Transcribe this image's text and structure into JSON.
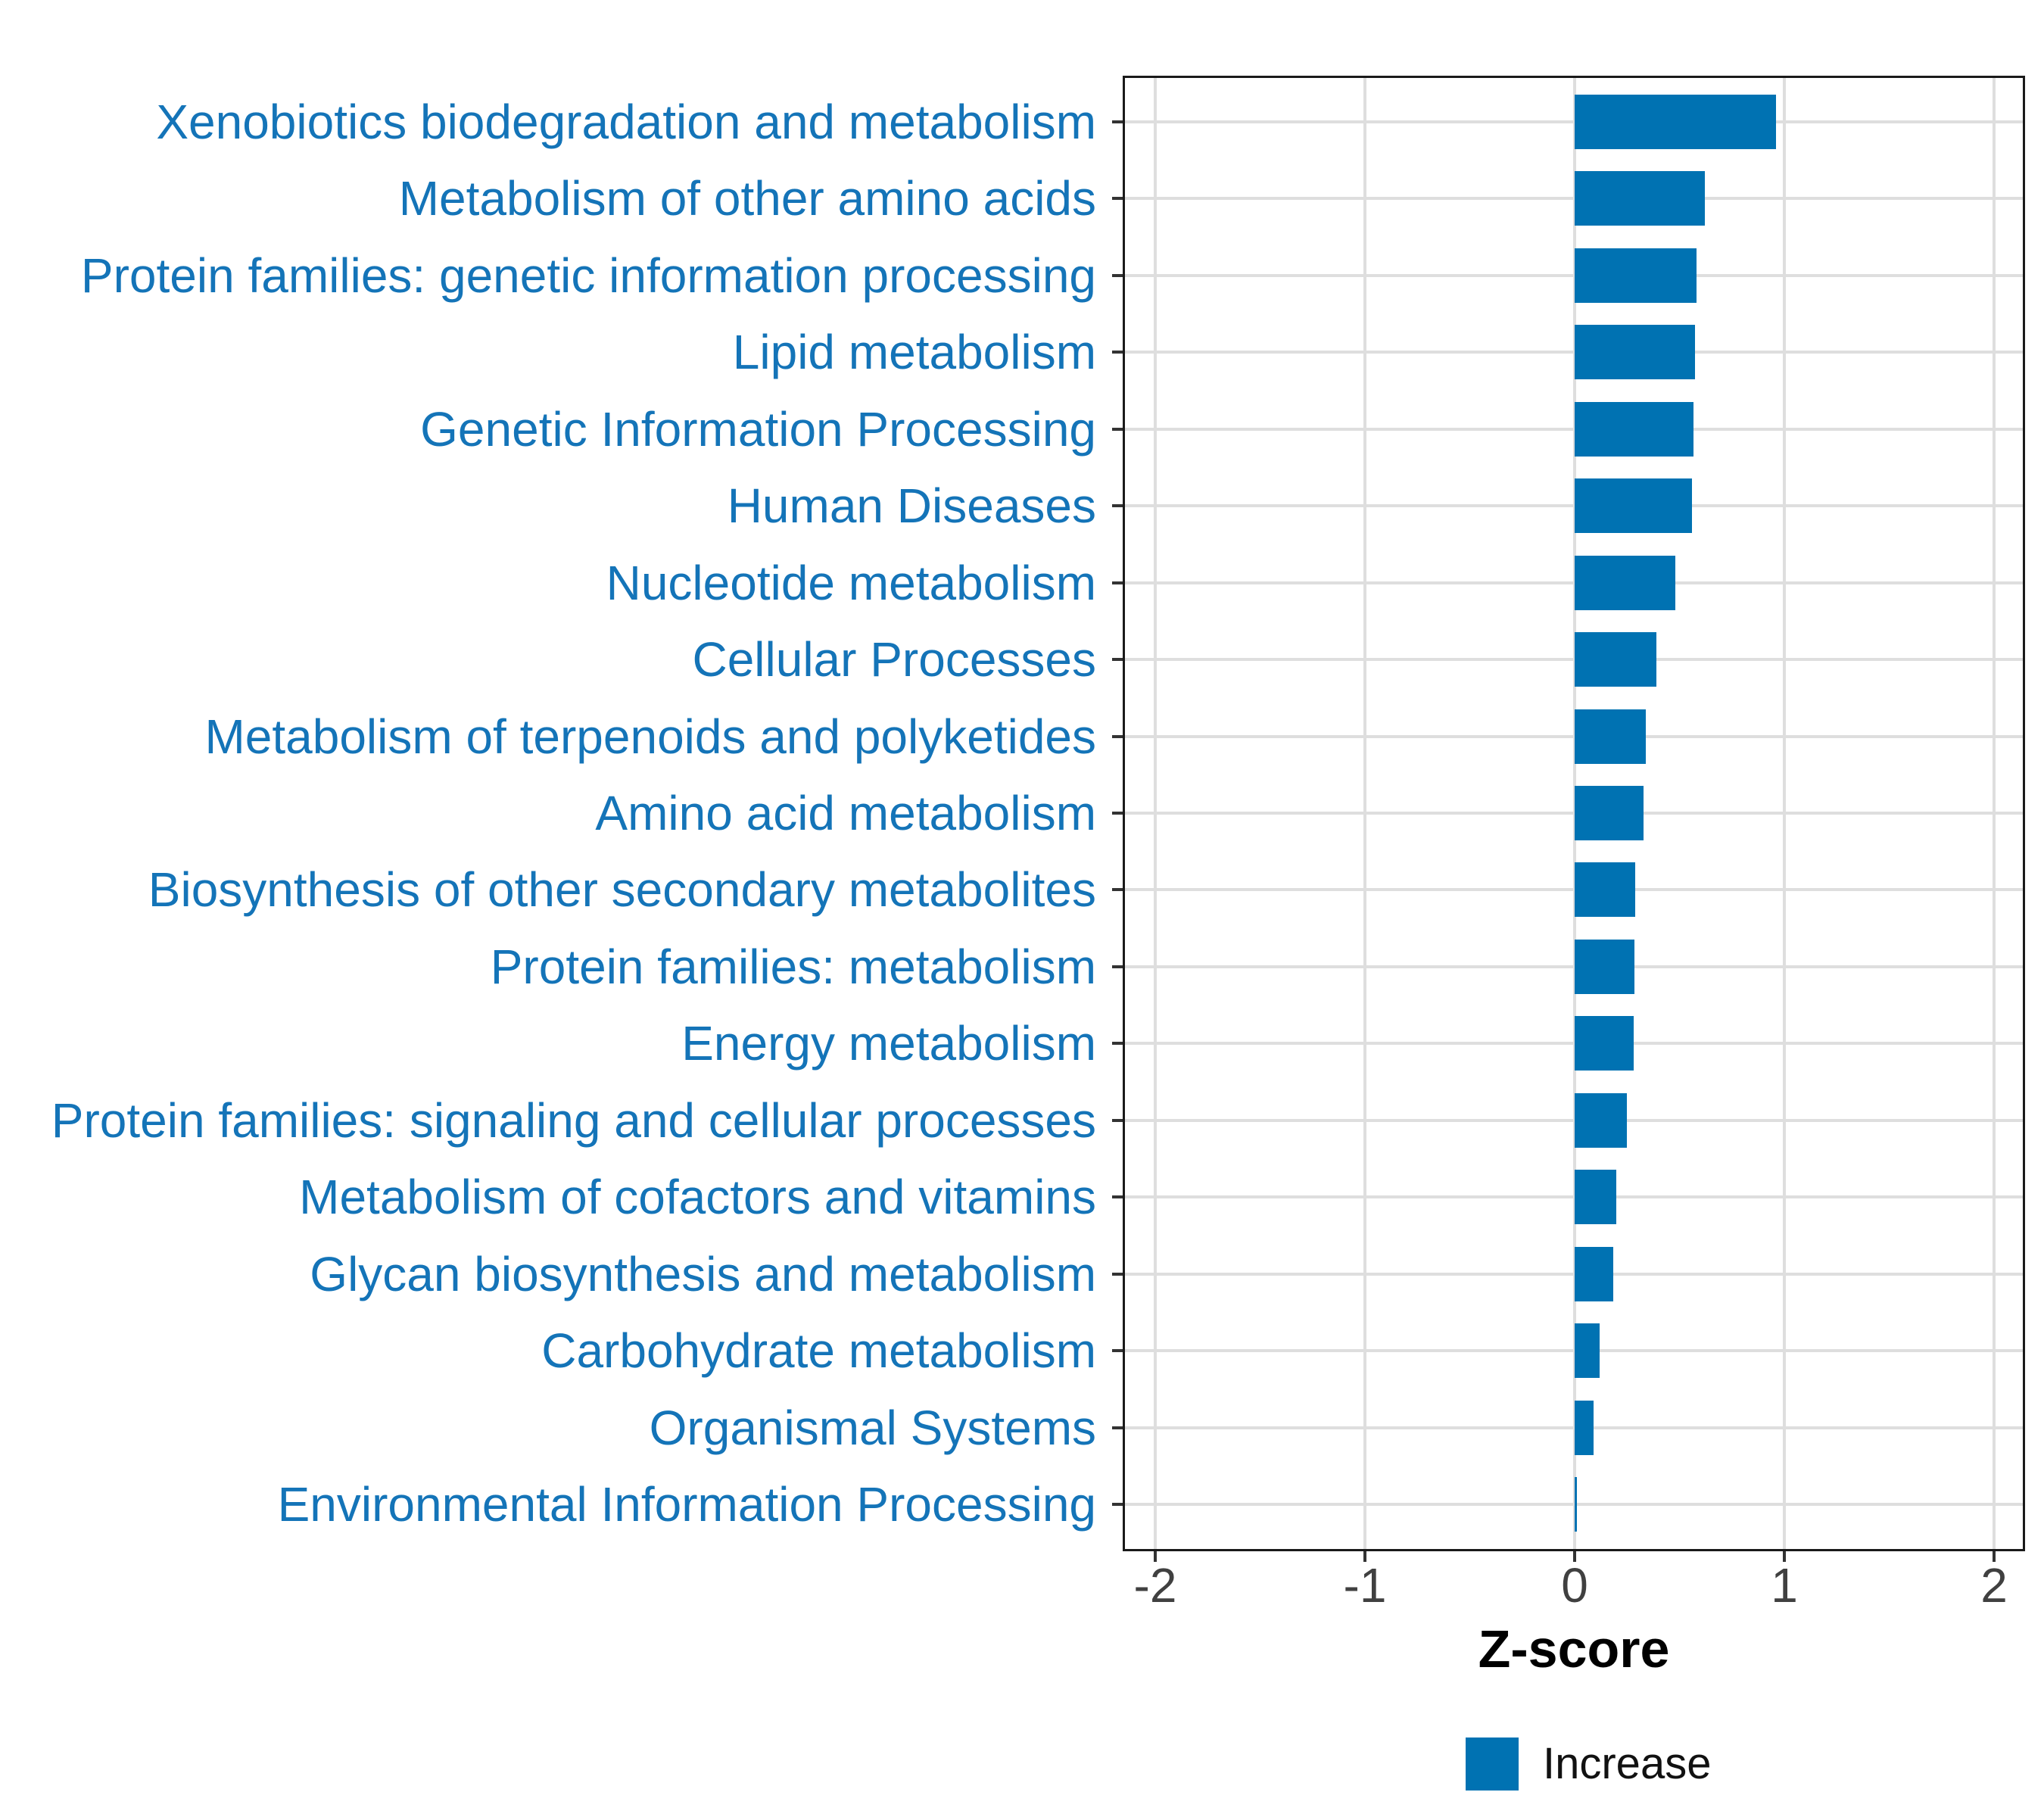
{
  "chart_data": {
    "type": "bar",
    "orientation": "horizontal",
    "title": "",
    "xlabel": "Z-score",
    "ylabel": "",
    "xlim": [
      -2.15,
      2.15
    ],
    "x_ticks": [
      -2,
      -1,
      0,
      1,
      2
    ],
    "grid": true,
    "bar_color": "#0072B2",
    "category_label_color": "#1474B8",
    "categories": [
      "Xenobiotics biodegradation and metabolism",
      "Metabolism of other amino acids",
      "Protein families: genetic information processing",
      "Lipid metabolism",
      "Genetic Information Processing",
      "Human Diseases",
      "Nucleotide metabolism",
      "Cellular Processes",
      "Metabolism of terpenoids and polyketides",
      "Amino acid metabolism",
      "Biosynthesis of other secondary metabolites",
      "Protein families: metabolism",
      "Energy metabolism",
      "Protein families: signaling and cellular processes",
      "Metabolism of cofactors and vitamins",
      "Glycan biosynthesis and metabolism",
      "Carbohydrate metabolism",
      "Organismal Systems",
      "Environmental Information Processing"
    ],
    "values": [
      0.96,
      0.62,
      0.58,
      0.575,
      0.565,
      0.56,
      0.48,
      0.39,
      0.34,
      0.33,
      0.29,
      0.285,
      0.28,
      0.25,
      0.2,
      0.185,
      0.12,
      0.09,
      0.012
    ],
    "legend": {
      "position": "bottom",
      "entries": [
        {
          "label": "Increase",
          "color": "#0072B2"
        }
      ]
    }
  }
}
